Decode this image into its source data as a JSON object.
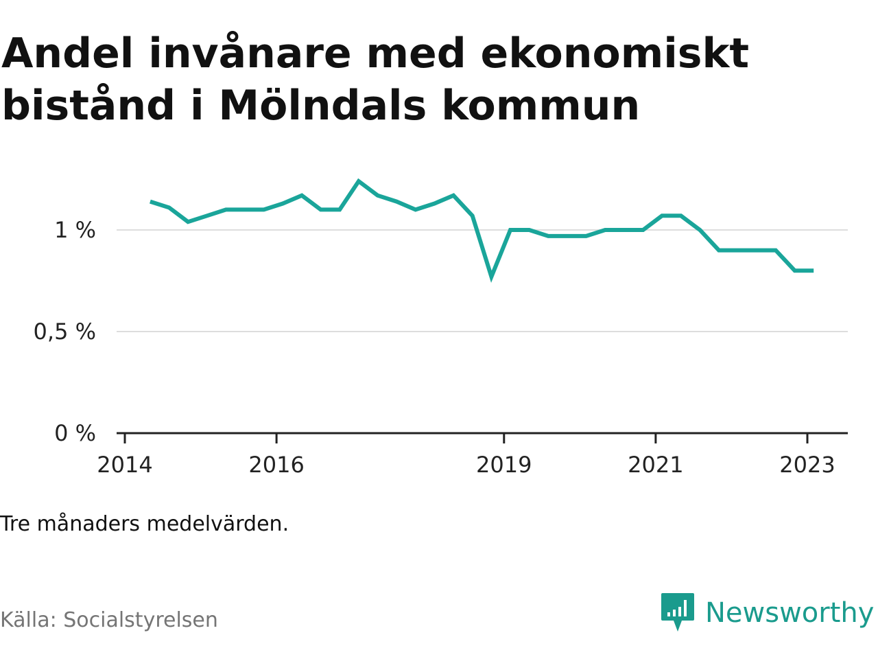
{
  "title": "Andel invånare med ekonomiskt bistånd i Mölndals kommun",
  "note": "Tre månaders medelvärden.",
  "source": "Källa: Socialstyrelsen",
  "brand": {
    "name": "Newsworthy",
    "icon": "newsworthy-logo-icon",
    "color": "#1a9b8d"
  },
  "chart_data": {
    "type": "line",
    "title": "Andel invånare med ekonomiskt bistånd i Mölndals kommun",
    "xlabel": "",
    "ylabel": "",
    "ylim": [
      0,
      1.3
    ],
    "xlim": [
      "2014-01",
      "2023-06"
    ],
    "grid": true,
    "line_color": "#1aa59a",
    "y_ticks": [
      {
        "value": 0,
        "label": "0 %"
      },
      {
        "value": 0.5,
        "label": "0,5 %"
      },
      {
        "value": 1,
        "label": "1 %"
      }
    ],
    "x_ticks": [
      "2014",
      "2016",
      "2019",
      "2021",
      "2023"
    ],
    "series": [
      {
        "values": [
          {
            "x": "2014-05",
            "y": 1.14
          },
          {
            "x": "2014-08",
            "y": 1.11
          },
          {
            "x": "2014-11",
            "y": 1.04
          },
          {
            "x": "2015-02",
            "y": 1.07
          },
          {
            "x": "2015-05",
            "y": 1.1
          },
          {
            "x": "2015-08",
            "y": 1.1
          },
          {
            "x": "2015-11",
            "y": 1.1
          },
          {
            "x": "2016-02",
            "y": 1.13
          },
          {
            "x": "2016-05",
            "y": 1.17
          },
          {
            "x": "2016-08",
            "y": 1.1
          },
          {
            "x": "2016-11",
            "y": 1.1
          },
          {
            "x": "2017-02",
            "y": 1.24
          },
          {
            "x": "2017-05",
            "y": 1.17
          },
          {
            "x": "2017-08",
            "y": 1.14
          },
          {
            "x": "2017-11",
            "y": 1.1
          },
          {
            "x": "2018-02",
            "y": 1.13
          },
          {
            "x": "2018-05",
            "y": 1.17
          },
          {
            "x": "2018-08",
            "y": 1.07
          },
          {
            "x": "2018-11",
            "y": 0.77
          },
          {
            "x": "2019-02",
            "y": 1.0
          },
          {
            "x": "2019-05",
            "y": 1.0
          },
          {
            "x": "2019-08",
            "y": 0.97
          },
          {
            "x": "2019-11",
            "y": 0.97
          },
          {
            "x": "2020-02",
            "y": 0.97
          },
          {
            "x": "2020-05",
            "y": 1.0
          },
          {
            "x": "2020-08",
            "y": 1.0
          },
          {
            "x": "2020-11",
            "y": 1.0
          },
          {
            "x": "2021-02",
            "y": 1.07
          },
          {
            "x": "2021-05",
            "y": 1.07
          },
          {
            "x": "2021-08",
            "y": 1.0
          },
          {
            "x": "2021-11",
            "y": 0.9
          },
          {
            "x": "2022-02",
            "y": 0.9
          },
          {
            "x": "2022-05",
            "y": 0.9
          },
          {
            "x": "2022-08",
            "y": 0.9
          },
          {
            "x": "2022-11",
            "y": 0.8
          },
          {
            "x": "2023-02",
            "y": 0.8
          }
        ]
      }
    ]
  }
}
